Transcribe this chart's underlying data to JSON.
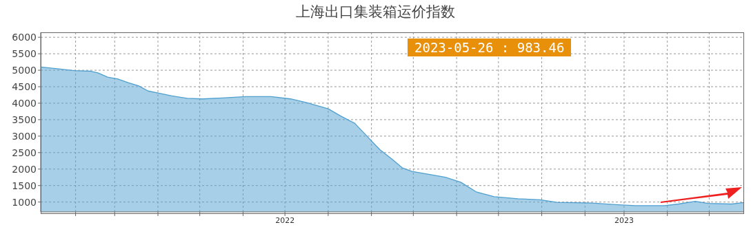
{
  "chart_data": {
    "type": "area",
    "title": "上海出口集装箱运价指数",
    "annotations": [
      "2023-05-26 : 983.46"
    ],
    "x": [
      "2022-01-07",
      "2022-01-20",
      "2022-01-31",
      "2022-02-12",
      "2022-02-17",
      "2022-02-24",
      "2022-03-03",
      "2022-03-11",
      "2022-03-18",
      "2022-03-25",
      "2022-04-01",
      "2022-04-11",
      "2022-04-22",
      "2022-05-03",
      "2022-05-17",
      "2022-06-03",
      "2022-06-21",
      "2022-07-05",
      "2022-07-17",
      "2022-08-01",
      "2022-08-10",
      "2022-08-20",
      "2022-08-31",
      "2022-09-07",
      "2022-09-16",
      "2022-09-23",
      "2022-09-30",
      "2022-10-15",
      "2022-10-24",
      "2022-11-04",
      "2022-11-15",
      "2022-11-28",
      "2022-12-15",
      "2022-12-31",
      "2023-01-12",
      "2023-02-06",
      "2023-02-23",
      "2023-03-09",
      "2023-03-30",
      "2023-04-09",
      "2023-04-21",
      "2023-04-30",
      "2023-05-17",
      "2023-05-26"
    ],
    "series": [
      {
        "color": "#4f9fcf",
        "values": [
          5100,
          5040,
          4990,
          4970,
          4920,
          4790,
          4740,
          4620,
          4530,
          4370,
          4310,
          4220,
          4150,
          4130,
          4160,
          4200,
          4200,
          4130,
          4010,
          3830,
          3610,
          3390,
          2900,
          2590,
          2290,
          2040,
          1930,
          1820,
          1750,
          1600,
          1310,
          1160,
          1100,
          1070,
          990,
          970,
          920,
          890,
          890,
          940,
          1020,
          960,
          940,
          983.46
        ]
      }
    ],
    "xlim": [
      "2022-01-07",
      "2023-05-26"
    ],
    "xticks": [
      {
        "value": "2022-02-01",
        "label": null
      },
      {
        "value": "2022-03-01",
        "label": null
      },
      {
        "value": "2022-04-01",
        "label": null
      },
      {
        "value": "2022-05-01",
        "label": null
      },
      {
        "value": "2022-06-01",
        "label": null
      },
      {
        "value": "2022-07-01",
        "label": "2022"
      },
      {
        "value": "2022-08-01",
        "label": null
      },
      {
        "value": "2022-09-01",
        "label": null
      },
      {
        "value": "2022-10-01",
        "label": null
      },
      {
        "value": "2022-11-01",
        "label": null
      },
      {
        "value": "2022-12-01",
        "label": null
      },
      {
        "value": "2023-01-01",
        "label": null
      },
      {
        "value": "2023-02-01",
        "label": null
      },
      {
        "value": "2023-03-01",
        "label": "2023"
      },
      {
        "value": "2023-04-01",
        "label": null
      },
      {
        "value": "2023-05-01",
        "label": null
      }
    ],
    "ylim": [
      700,
      6150
    ],
    "yticks": [
      1000,
      1500,
      2000,
      2500,
      3000,
      3500,
      4000,
      4500,
      5000,
      5500,
      6000
    ],
    "grid": true,
    "legend": false
  }
}
